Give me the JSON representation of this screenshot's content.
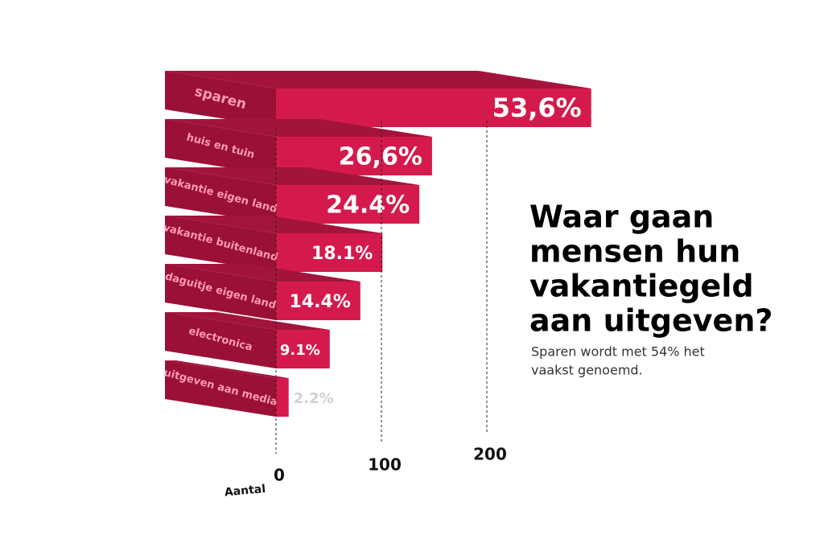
{
  "chart_data": {
    "type": "bar3d",
    "title": [
      "Waar gaan",
      "mensen hun",
      "vakantiegeld",
      "aan uitgeven?"
    ],
    "subtitle": [
      "Sparen wordt met 54% het",
      "vaakst genoemd."
    ],
    "xlabel": "Aantal",
    "categories": [
      "sparen",
      "huis en tuin",
      "vakantie eigen land",
      "vakantie buitenland",
      "daguitje eigen land",
      "electronica",
      "uitgeven aan media"
    ],
    "values": [
      299,
      148,
      136,
      101,
      80,
      51,
      12
    ],
    "value_labels": [
      "53,6%",
      "26,6%",
      "24.4%",
      "18.1%",
      "14.4%",
      "9.1%",
      "2.2%"
    ],
    "color": "#d41a4c",
    "xlim": [
      0,
      300
    ],
    "xticks": [
      0,
      100,
      200
    ],
    "grid": true
  }
}
